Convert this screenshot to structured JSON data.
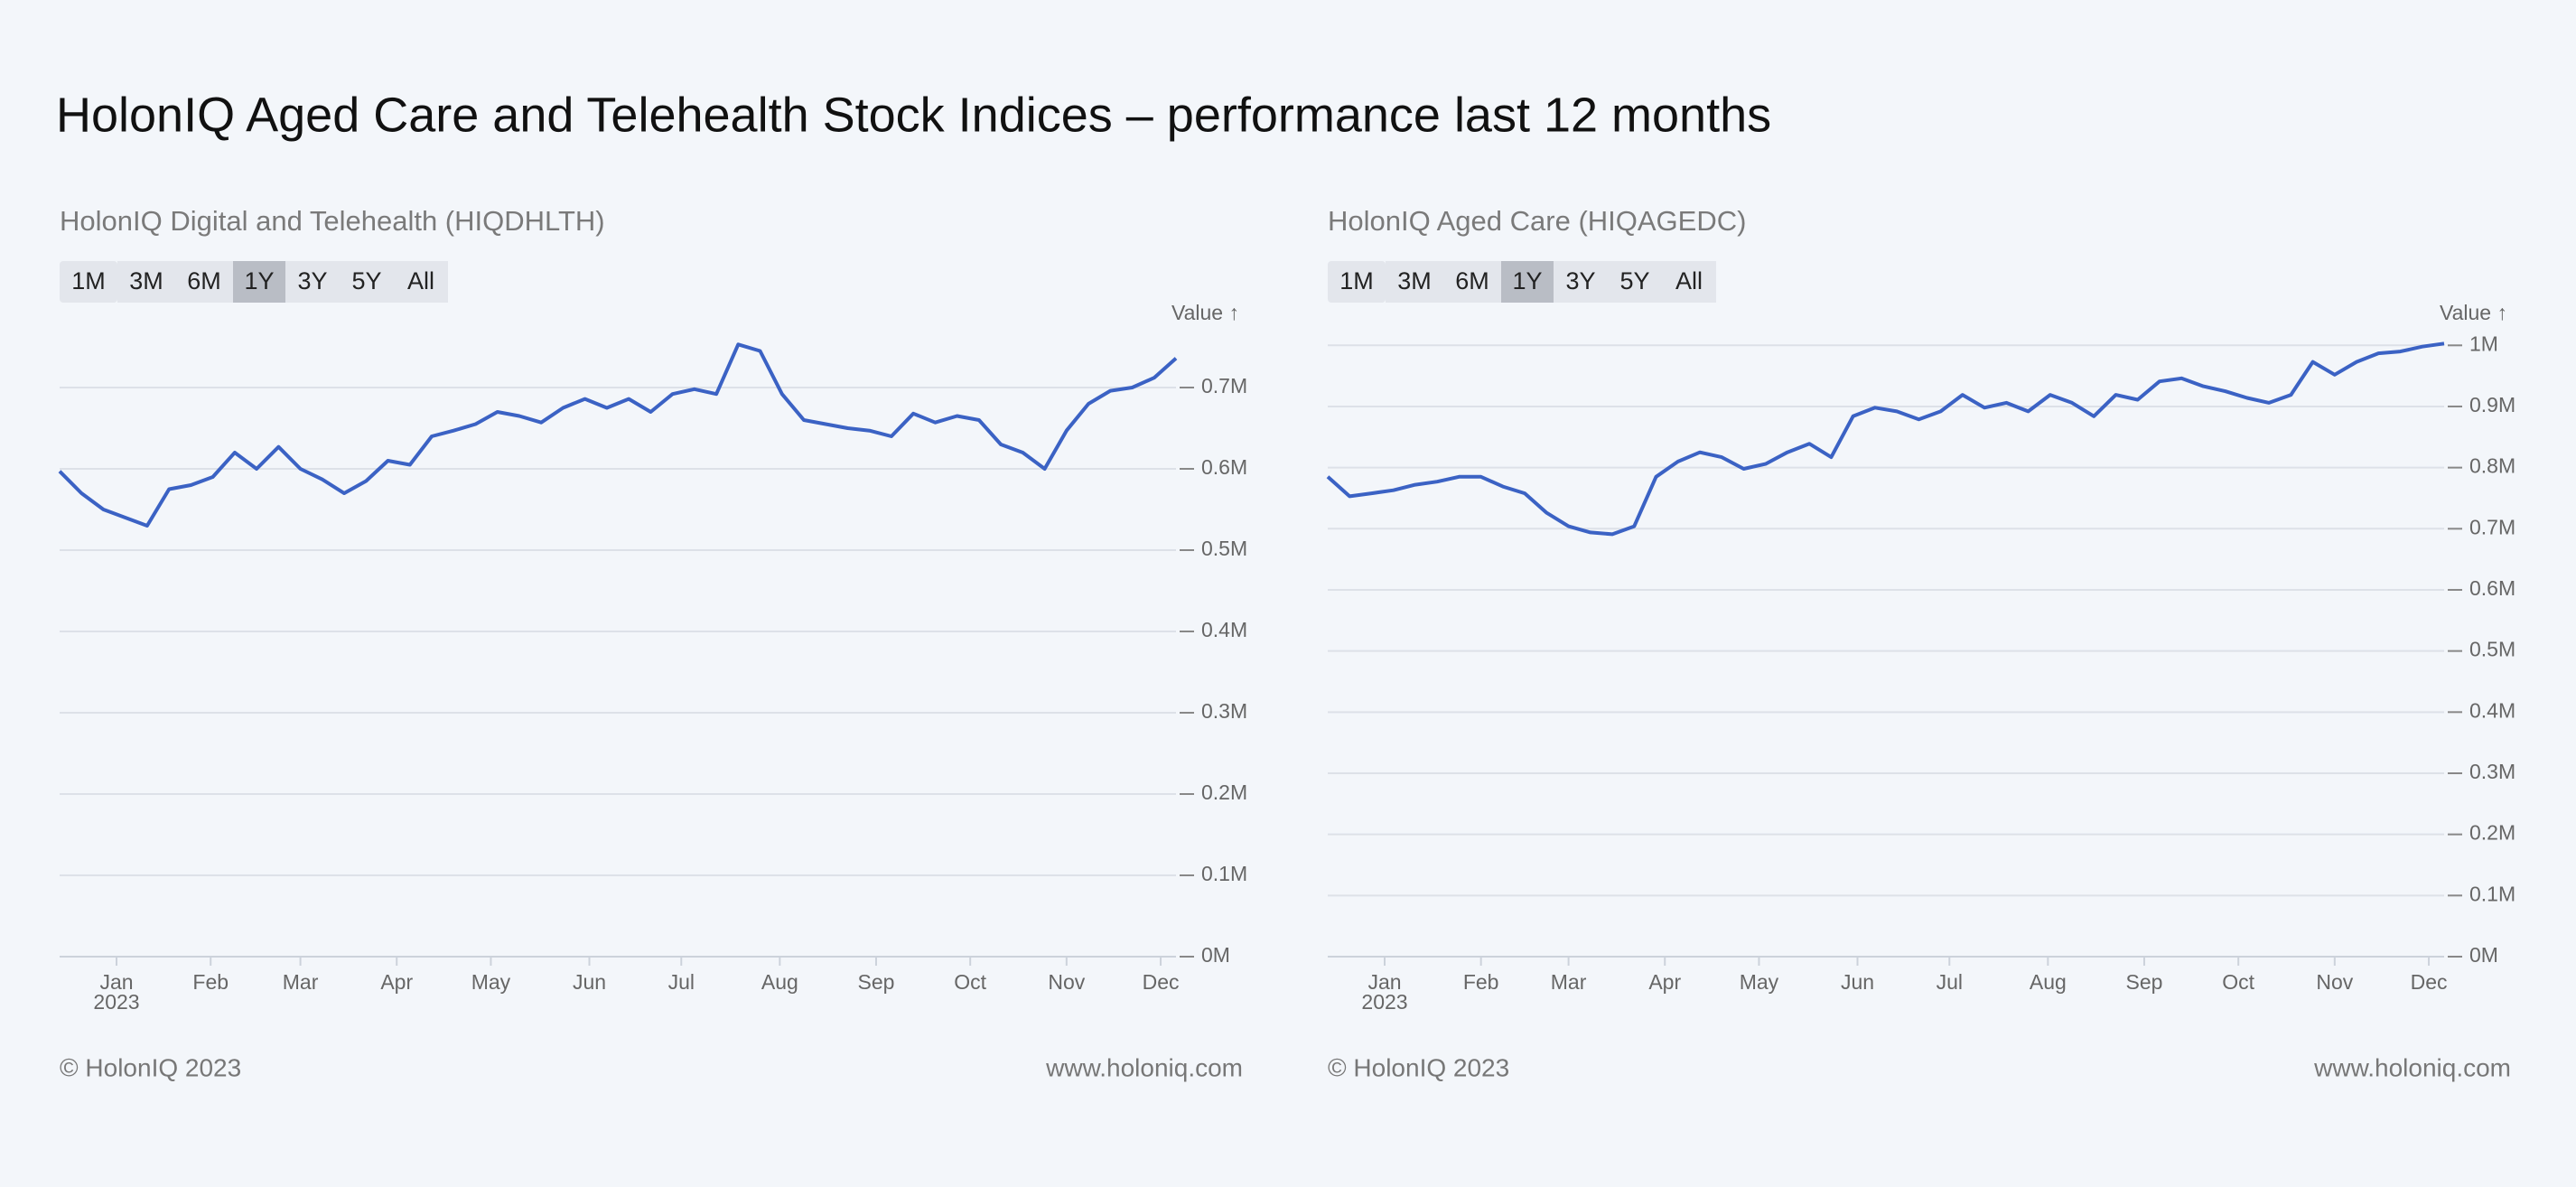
{
  "title": "HolonIQ Aged Care and Telehealth Stock Indices – performance last 12 months",
  "charts": [
    {
      "type": "line",
      "title": "HolonIQ Digital and Telehealth (HIQDHLTH)",
      "range_buttons": [
        "1M",
        "3M",
        "6M",
        "1Y",
        "3Y",
        "5Y",
        "All"
      ],
      "selected_range": "1Y",
      "y_label": "Value ↑",
      "color": "#3b62c4",
      "values": [
        597000,
        570000,
        550000,
        540000,
        530000,
        575000,
        580000,
        590000,
        620000,
        600000,
        627000,
        600000,
        587000,
        570000,
        585000,
        610000,
        605000,
        640000,
        647000,
        655000,
        670000,
        665000,
        657000,
        675000,
        686000,
        675000,
        686000,
        670000,
        692000,
        698000,
        692000,
        753000,
        745000,
        692000,
        660000,
        655000,
        650000,
        647000,
        640000,
        668000,
        657000,
        665000,
        660000,
        630000,
        620000,
        600000,
        647000,
        680000,
        696000,
        700000,
        712000,
        736000
      ],
      "xlim": [
        0,
        51
      ],
      "xticks": [
        {
          "value": 2.6,
          "label": "Jan"
        },
        {
          "value": 6.9,
          "label": "Feb"
        },
        {
          "value": 11.0,
          "label": "Mar"
        },
        {
          "value": 15.4,
          "label": "Apr"
        },
        {
          "value": 19.7,
          "label": "May"
        },
        {
          "value": 24.2,
          "label": "Jun"
        },
        {
          "value": 28.4,
          "label": "Jul"
        },
        {
          "value": 32.9,
          "label": "Aug"
        },
        {
          "value": 37.3,
          "label": "Sep"
        },
        {
          "value": 41.6,
          "label": "Oct"
        },
        {
          "value": 46.0,
          "label": "Nov"
        },
        {
          "value": 50.3,
          "label": "Dec"
        }
      ],
      "x_sublabel": "2023",
      "ylim": [
        0,
        760000
      ],
      "yticks": [
        {
          "value": 0,
          "label": "0M"
        },
        {
          "value": 100000,
          "label": "0.1M"
        },
        {
          "value": 200000,
          "label": "0.2M"
        },
        {
          "value": 300000,
          "label": "0.3M"
        },
        {
          "value": 400000,
          "label": "0.4M"
        },
        {
          "value": 500000,
          "label": "0.5M"
        },
        {
          "value": 600000,
          "label": "0.6M"
        },
        {
          "value": 700000,
          "label": "0.7M"
        }
      ],
      "grid": true,
      "footer_left": "© HolonIQ 2023",
      "footer_right": "www.holoniq.com"
    },
    {
      "type": "line",
      "title": "HolonIQ Aged Care (HIQAGEDC)",
      "range_buttons": [
        "1M",
        "3M",
        "6M",
        "1Y",
        "3Y",
        "5Y",
        "All"
      ],
      "selected_range": "1Y",
      "y_label": "Value ↑",
      "color": "#3b62c4",
      "values": [
        785000,
        753000,
        758000,
        763000,
        772000,
        777000,
        785000,
        785000,
        769000,
        758000,
        726000,
        704000,
        694000,
        691000,
        704000,
        785000,
        810000,
        825000,
        817000,
        798000,
        806000,
        825000,
        839000,
        817000,
        884000,
        898000,
        892000,
        879000,
        892000,
        919000,
        898000,
        906000,
        892000,
        919000,
        906000,
        884000,
        919000,
        911000,
        941000,
        946000,
        933000,
        925000,
        914000,
        906000,
        919000,
        973000,
        952000,
        973000,
        987000,
        990000,
        998000,
        1003000
      ],
      "xlim": [
        0,
        51
      ],
      "xticks": [
        {
          "value": 2.6,
          "label": "Jan"
        },
        {
          "value": 7.0,
          "label": "Feb"
        },
        {
          "value": 11.0,
          "label": "Mar"
        },
        {
          "value": 15.4,
          "label": "Apr"
        },
        {
          "value": 19.7,
          "label": "May"
        },
        {
          "value": 24.2,
          "label": "Jun"
        },
        {
          "value": 28.4,
          "label": "Jul"
        },
        {
          "value": 32.9,
          "label": "Aug"
        },
        {
          "value": 37.3,
          "label": "Sep"
        },
        {
          "value": 41.6,
          "label": "Oct"
        },
        {
          "value": 46.0,
          "label": "Nov"
        },
        {
          "value": 50.3,
          "label": "Dec"
        }
      ],
      "x_sublabel": "2023",
      "ylim": [
        0,
        1030000
      ],
      "yticks": [
        {
          "value": 0,
          "label": "0M"
        },
        {
          "value": 100000,
          "label": "0.1M"
        },
        {
          "value": 200000,
          "label": "0.2M"
        },
        {
          "value": 300000,
          "label": "0.3M"
        },
        {
          "value": 400000,
          "label": "0.4M"
        },
        {
          "value": 500000,
          "label": "0.5M"
        },
        {
          "value": 600000,
          "label": "0.6M"
        },
        {
          "value": 700000,
          "label": "0.7M"
        },
        {
          "value": 800000,
          "label": "0.8M"
        },
        {
          "value": 900000,
          "label": "0.9M"
        },
        {
          "value": 1000000,
          "label": "1M"
        }
      ],
      "grid": true,
      "footer_left": "© HolonIQ 2023",
      "footer_right": "www.holoniq.com"
    }
  ]
}
